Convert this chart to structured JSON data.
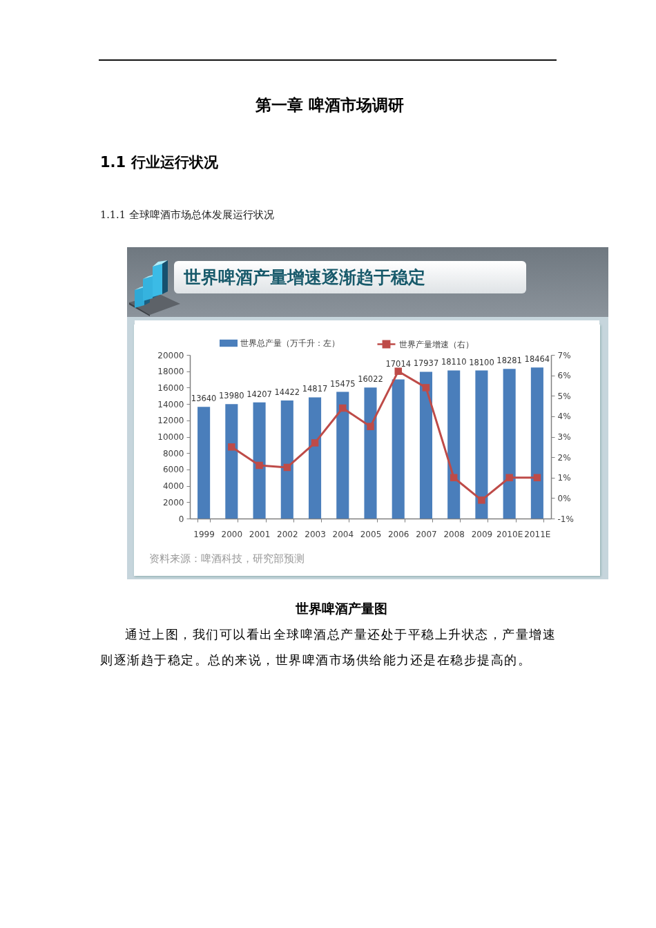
{
  "chart_data": {
    "type": "bar",
    "title": "世界啤酒产量增速逐渐趋于稳定",
    "categories": [
      "1999",
      "2000",
      "2001",
      "2002",
      "2003",
      "2004",
      "2005",
      "2006",
      "2007",
      "2008",
      "2009",
      "2010E",
      "2011E"
    ],
    "series": [
      {
        "name": "世界总产量（万千升：左）",
        "color": "#4a7ebb",
        "values": [
          13640,
          13980,
          14207,
          14422,
          14817,
          15475,
          16022,
          17014,
          17937,
          18110,
          18100,
          18281,
          18464
        ],
        "value_labels": [
          "13640",
          "13980",
          "14207",
          "14422",
          "14817",
          "15475",
          "16022",
          "17014",
          "17937",
          "18110",
          "18100",
          "18281",
          "18464"
        ]
      },
      {
        "name": "世界产量增速（右）",
        "type": "line",
        "axis": "y2",
        "color": "#be4b48",
        "values": [
          null,
          2.5,
          1.6,
          1.5,
          2.7,
          4.4,
          3.5,
          6.2,
          5.4,
          1.0,
          -0.1,
          1.0,
          1.0
        ]
      }
    ],
    "ylim": [
      0,
      20000
    ],
    "yticks": [
      0,
      2000,
      4000,
      6000,
      8000,
      10000,
      12000,
      14000,
      16000,
      18000,
      20000
    ],
    "y2lim": [
      -1,
      7
    ],
    "y2ticks": [
      {
        "value": -1,
        "label": "-1%"
      },
      {
        "value": 0,
        "label": "0%"
      },
      {
        "value": 1,
        "label": "1%"
      },
      {
        "value": 2,
        "label": "2%"
      },
      {
        "value": 3,
        "label": "3%"
      },
      {
        "value": 4,
        "label": "4%"
      },
      {
        "value": 5,
        "label": "5%"
      },
      {
        "value": 6,
        "label": "6%"
      },
      {
        "value": 7,
        "label": "7%"
      }
    ],
    "marker": "square",
    "legend": "top",
    "annotations": [
      "第一章 啤酒市场调研",
      "1.1 行业运行状况",
      "1.1.1 全球啤酒市场总体发展运行状况",
      "资料来源：啤酒科技，研究部预测",
      "世界啤酒产量图",
      "通过上图，我们可以看出全球啤酒总产量还处于平稳上升状态，产量增速则逐渐趋于稳定。总的来说，世界啤酒市场供给能力还是在稳步提高的。"
    ]
  }
}
